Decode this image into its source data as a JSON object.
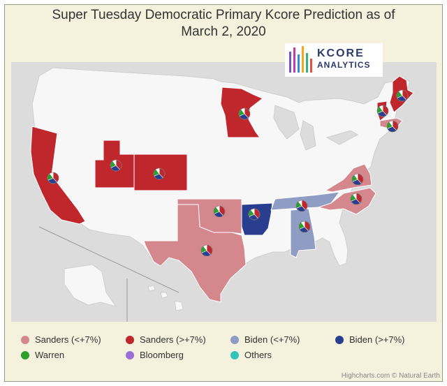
{
  "title_line1": "Super Tuesday Democratic Primary Kcore Prediction as of",
  "title_line2": "March 2, 2020",
  "logo": {
    "brand": "KCORE",
    "sub": "ANALYTICS"
  },
  "colors": {
    "sanders_lt7": "#d4878c",
    "sanders_gt7": "#c0272d",
    "biden_lt7": "#8f9dc4",
    "biden_gt7": "#2a3e8f",
    "warren": "#2ca02c",
    "bloomberg": "#9b6fd6",
    "others": "#33c4b8",
    "no_data": "#f7f7f7",
    "ocean": "#dcdcdc"
  },
  "legend": [
    {
      "label": "Sanders (<+7%)",
      "color_key": "sanders_lt7"
    },
    {
      "label": "Sanders (>+7%)",
      "color_key": "sanders_gt7"
    },
    {
      "label": "Biden (<+7%)",
      "color_key": "biden_lt7"
    },
    {
      "label": "Biden (>+7%)",
      "color_key": "biden_gt7"
    },
    {
      "label": "Warren",
      "color_key": "warren"
    },
    {
      "label": "Bloomberg",
      "color_key": "bloomberg"
    },
    {
      "label": "Others",
      "color_key": "others"
    }
  ],
  "states": [
    {
      "name": "California",
      "category": "sanders_gt7"
    },
    {
      "name": "Utah",
      "category": "sanders_gt7"
    },
    {
      "name": "Colorado",
      "category": "sanders_gt7"
    },
    {
      "name": "Minnesota",
      "category": "sanders_gt7"
    },
    {
      "name": "Vermont",
      "category": "sanders_gt7"
    },
    {
      "name": "Maine",
      "category": "sanders_gt7"
    },
    {
      "name": "Massachusetts",
      "category": "sanders_lt7"
    },
    {
      "name": "Oklahoma",
      "category": "sanders_lt7"
    },
    {
      "name": "Texas",
      "category": "sanders_lt7"
    },
    {
      "name": "Virginia",
      "category": "sanders_lt7"
    },
    {
      "name": "North Carolina",
      "category": "sanders_lt7"
    },
    {
      "name": "Arkansas",
      "category": "biden_gt7"
    },
    {
      "name": "Tennessee",
      "category": "biden_lt7"
    },
    {
      "name": "Alabama",
      "category": "biden_lt7"
    }
  ],
  "credits": "Highcharts.com © Natural Earth"
}
